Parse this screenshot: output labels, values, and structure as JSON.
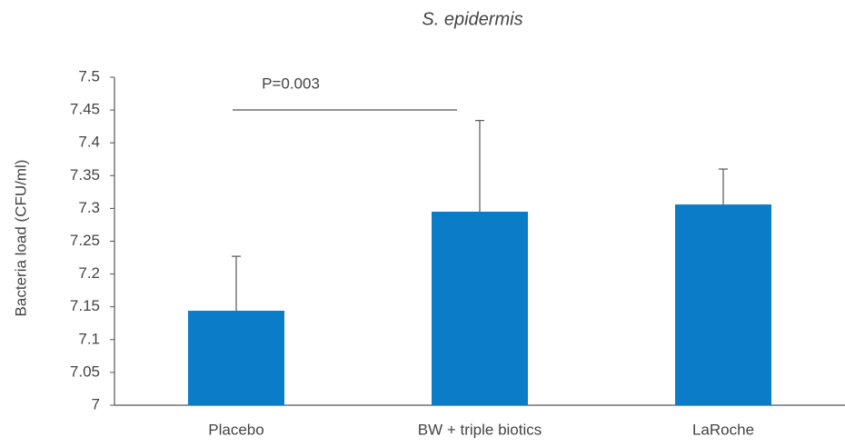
{
  "chart_data": {
    "type": "bar",
    "title": "S. epidermis",
    "ylabel": "Bacteria load (CFU/ml)",
    "categories": [
      "Placebo",
      "BW + triple biotics",
      "LaRoche"
    ],
    "values": [
      7.144,
      7.295,
      7.306
    ],
    "errors": [
      0.083,
      0.139,
      0.054
    ],
    "color": "#0a7cc8",
    "ylim": [
      7,
      7.5
    ],
    "yticks": [
      7,
      7.05,
      7.1,
      7.15,
      7.2,
      7.25,
      7.3,
      7.35,
      7.4,
      7.45,
      7.5
    ],
    "annotation": "P=0.003"
  }
}
